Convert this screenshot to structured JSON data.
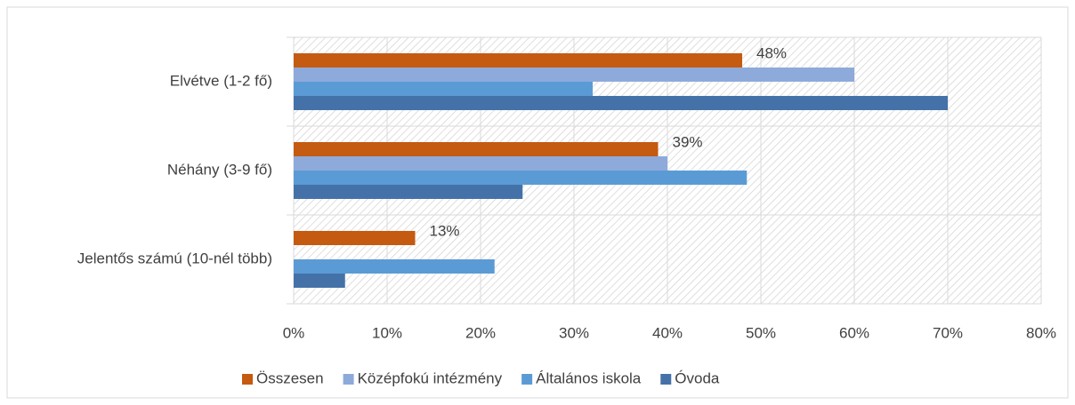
{
  "chart_data": {
    "type": "hbar",
    "categories": [
      "Elvétve (1-2 fő)",
      "Néhány (3-9 fő)",
      "Jelentős számú (10-nél több)"
    ],
    "series": [
      {
        "name": "Összesen",
        "color": "#c55a11",
        "values": [
          48,
          39,
          13
        ],
        "value_labels": [
          "48%",
          "39%",
          "13%"
        ]
      },
      {
        "name": "Középfokú intézmény",
        "color": "#8eaadb",
        "values": [
          60,
          40,
          0
        ]
      },
      {
        "name": "Általános iskola",
        "color": "#5b9bd5",
        "values": [
          32,
          48.5,
          21.5
        ]
      },
      {
        "name": "Óvoda",
        "color": "#4472a8",
        "values": [
          70,
          24.5,
          5.5
        ]
      }
    ],
    "xlim": [
      0,
      80
    ],
    "xticks": [
      {
        "value": 0,
        "label": "0%"
      },
      {
        "value": 10,
        "label": "10%"
      },
      {
        "value": 20,
        "label": "20%"
      },
      {
        "value": 30,
        "label": "30%"
      },
      {
        "value": 40,
        "label": "40%"
      },
      {
        "value": 50,
        "label": "50%"
      },
      {
        "value": 60,
        "label": "60%"
      },
      {
        "value": 70,
        "label": "70%"
      },
      {
        "value": 80,
        "label": "80%"
      }
    ],
    "grid": true,
    "legend": "bottom"
  }
}
